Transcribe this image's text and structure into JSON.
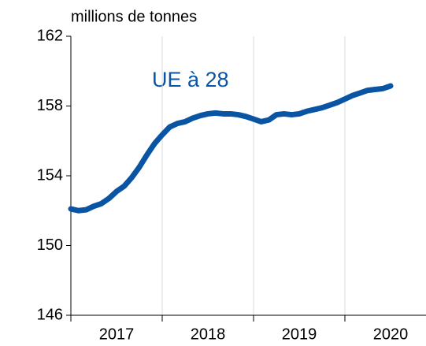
{
  "chart_data": {
    "type": "line",
    "y_label": "millions de tonnes",
    "annotation": "UE à 28",
    "categories": [
      "2017",
      "2018",
      "2019",
      "2020"
    ],
    "x": [
      2017,
      2017.083,
      2017.167,
      2017.25,
      2017.333,
      2017.417,
      2017.5,
      2017.583,
      2017.667,
      2017.75,
      2017.833,
      2017.917,
      2018,
      2018.083,
      2018.167,
      2018.25,
      2018.333,
      2018.417,
      2018.5,
      2018.583,
      2018.667,
      2018.75,
      2018.833,
      2018.917,
      2019,
      2019.083,
      2019.167,
      2019.25,
      2019.333,
      2019.417,
      2019.5,
      2019.583,
      2019.667,
      2019.75,
      2019.833,
      2019.917,
      2020,
      2020.083,
      2020.167,
      2020.25,
      2020.333,
      2020.417,
      2020.5
    ],
    "series": [
      {
        "name": "UE à 28",
        "color": "#0a55a3",
        "values": [
          152.1,
          152.0,
          152.05,
          152.25,
          152.4,
          152.7,
          153.1,
          153.4,
          153.9,
          154.5,
          155.2,
          155.85,
          156.35,
          156.8,
          157.0,
          157.1,
          157.3,
          157.45,
          157.55,
          157.6,
          157.55,
          157.55,
          157.5,
          157.4,
          157.25,
          157.1,
          157.2,
          157.5,
          157.55,
          157.5,
          157.55,
          157.7,
          157.8,
          157.9,
          158.05,
          158.2,
          158.4,
          158.6,
          158.75,
          158.9,
          158.95,
          159.0,
          159.15
        ]
      }
    ],
    "xlim": [
      2017,
      2021
    ],
    "ylim": [
      146,
      162
    ],
    "yticks": [
      146,
      150,
      154,
      158,
      162
    ],
    "grid": true
  }
}
